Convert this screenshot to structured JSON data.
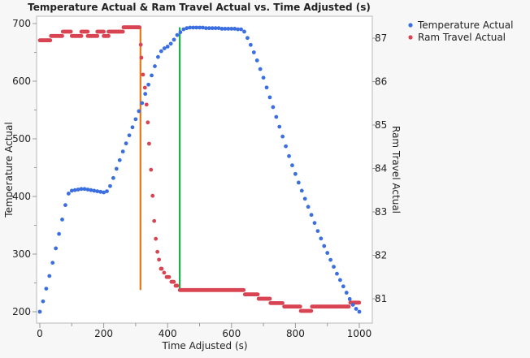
{
  "chart_data": {
    "type": "scatter",
    "title": "Temperature Actual & Ram Travel Actual vs. Time Adjusted (s)",
    "xlabel": "Time Adjusted (s)",
    "ylabel": "Temperature Actual",
    "y2label": "Ram Travel Actual",
    "xlim": [
      -5,
      1040
    ],
    "ylim": [
      180,
      712
    ],
    "y2lim": [
      80.55,
      87.5
    ],
    "x_ticks": [
      "0",
      "200",
      "400",
      "600",
      "800",
      "1000"
    ],
    "y_ticks": [
      "200",
      "300",
      "400",
      "500",
      "600",
      "700"
    ],
    "y2_ticks": [
      "81",
      "82",
      "83",
      "84",
      "85",
      "86",
      "87"
    ],
    "legend": {
      "placement": "right-outside",
      "entries": [
        "Temperature Actual",
        "Ram Travel Actual"
      ]
    },
    "colors": {
      "temperature": "#3b6fe0",
      "ram": "#d94452",
      "orange_line": "#f07414",
      "green_line": "#1fac4a"
    },
    "series": [
      {
        "name": "Temperature Actual",
        "axis": "left",
        "x_step": 10,
        "x_start": 0,
        "values": [
          200,
          218,
          240,
          262,
          285,
          310,
          335,
          360,
          385,
          405,
          410,
          411,
          412,
          413,
          413,
          412,
          411,
          410,
          409,
          408,
          407,
          409,
          418,
          432,
          448,
          463,
          478,
          492,
          506,
          520,
          534,
          548,
          562,
          578,
          594,
          610,
          626,
          642,
          652,
          657,
          660,
          665,
          672,
          680,
          685,
          690,
          692,
          693,
          693,
          693,
          693,
          693,
          692,
          692,
          692,
          692,
          692,
          691,
          691,
          691,
          691,
          691,
          690,
          690,
          686,
          675,
          663,
          650,
          636,
          621,
          606,
          589,
          572,
          555,
          538,
          521,
          504,
          487,
          470,
          454,
          439,
          424,
          410,
          396,
          382,
          368,
          354,
          340,
          327,
          314,
          302,
          290,
          278,
          266,
          255,
          244,
          233,
          222,
          212,
          205,
          200
        ]
      },
      {
        "name": "Ram Travel Actual",
        "axis": "right",
        "runs": [
          [
            0,
            33,
            86.95
          ],
          [
            35,
            72,
            87.05
          ],
          [
            72,
            97,
            87.15
          ],
          [
            100,
            130,
            87.05
          ],
          [
            130,
            150,
            87.15
          ],
          [
            150,
            180,
            87.05
          ],
          [
            180,
            200,
            87.15
          ],
          [
            200,
            215,
            87.05
          ],
          [
            215,
            260,
            87.15
          ],
          [
            262,
            313,
            87.25
          ],
          [
            379,
            383,
            81.69
          ],
          [
            397,
            405,
            81.5
          ],
          [
            412,
            420,
            81.39
          ],
          [
            425,
            432,
            81.3
          ],
          [
            438,
            639,
            81.2
          ],
          [
            642,
            682,
            81.1
          ],
          [
            685,
            720,
            81.0
          ],
          [
            722,
            761,
            80.9
          ],
          [
            765,
            815,
            80.82
          ],
          [
            817,
            850,
            80.72
          ],
          [
            852,
            967,
            80.82
          ],
          [
            972,
            1000,
            80.91
          ]
        ],
        "points": [
          [
            316,
            86.85
          ],
          [
            318,
            86.55
          ],
          [
            323,
            86.16
          ],
          [
            329,
            85.86
          ],
          [
            334,
            85.47
          ],
          [
            338,
            85.06
          ],
          [
            342,
            84.57
          ],
          [
            348,
            83.97
          ],
          [
            353,
            83.37
          ],
          [
            358,
            82.79
          ],
          [
            363,
            82.38
          ],
          [
            368,
            82.08
          ],
          [
            373,
            81.9
          ],
          [
            389,
            81.6
          ]
        ]
      }
    ],
    "reference_lines": [
      {
        "name": "orange",
        "x": 315,
        "y2_from": 81.2,
        "y2_to": 87.25
      },
      {
        "name": "green",
        "x": 438,
        "y2_from": 81.2,
        "y2_to": 87.25
      }
    ]
  }
}
